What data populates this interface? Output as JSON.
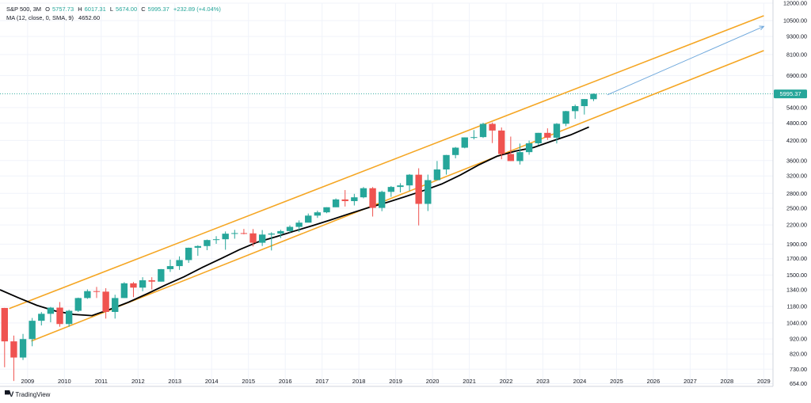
{
  "legend": {
    "symbol": "S&P 500, 3M",
    "open_label": "O",
    "open": "5757.73",
    "high_label": "H",
    "high": "6017.31",
    "low_label": "L",
    "low": "5674.00",
    "close_label": "C",
    "close": "5995.37",
    "change": "+232.89 (+4.04%)",
    "ma_label": "MA (12, close, 0, SMA, 9)",
    "ma_value": "4652.60"
  },
  "brand": {
    "icon": "tradingview-logo-icon",
    "name": "TradingView"
  },
  "price_badge": "5995.37",
  "colors": {
    "up": "#26a69a",
    "down": "#ef5350",
    "ma": "#000000",
    "channel": "#f5a623",
    "projection": "#6fa8dc",
    "grid": "#f0f3fa",
    "axis_text": "#131722"
  },
  "chart_data": {
    "type": "candlestick",
    "title": "",
    "xlabel": "",
    "ylabel": "",
    "y_scale": "log",
    "ylim": [
      640,
      12000
    ],
    "xlim": [
      2008.75,
      2029.75
    ],
    "grid": true,
    "y_ticks": [
      "654.00",
      "730.00",
      "820.00",
      "920.00",
      "1040.00",
      "1180.00",
      "1340.00",
      "1500.00",
      "1700.00",
      "1900.00",
      "2200.00",
      "2500.00",
      "2800.00",
      "3200.00",
      "3600.00",
      "4200.00",
      "4800.00",
      "5400.00",
      "6900.00",
      "8100.00",
      "9300.00",
      "10500.00",
      "12000.00"
    ],
    "x_ticks": [
      "2009",
      "2010",
      "2011",
      "2012",
      "2013",
      "2014",
      "2015",
      "2016",
      "2017",
      "2018",
      "2019",
      "2020",
      "2021",
      "2022",
      "2023",
      "2024",
      "2025",
      "2026",
      "2027",
      "2028",
      "2029"
    ],
    "series": [
      {
        "name": "S&P 500",
        "candles": [
          {
            "t": "2008-Q4",
            "o": 1166,
            "h": 1167,
            "l": 741,
            "c": 903
          },
          {
            "t": "2009-Q1",
            "o": 903,
            "h": 944,
            "l": 667,
            "c": 798
          },
          {
            "t": "2009-Q2",
            "o": 798,
            "h": 956,
            "l": 783,
            "c": 919
          },
          {
            "t": "2009-Q3",
            "o": 919,
            "h": 1080,
            "l": 870,
            "c": 1057
          },
          {
            "t": "2009-Q4",
            "o": 1057,
            "h": 1130,
            "l": 1020,
            "c": 1115
          },
          {
            "t": "2010-Q1",
            "o": 1115,
            "h": 1175,
            "l": 1045,
            "c": 1169
          },
          {
            "t": "2010-Q2",
            "o": 1169,
            "h": 1220,
            "l": 1010,
            "c": 1031
          },
          {
            "t": "2010-Q3",
            "o": 1031,
            "h": 1150,
            "l": 1010,
            "c": 1141
          },
          {
            "t": "2010-Q4",
            "o": 1141,
            "h": 1262,
            "l": 1131,
            "c": 1258
          },
          {
            "t": "2011-Q1",
            "o": 1258,
            "h": 1344,
            "l": 1250,
            "c": 1326
          },
          {
            "t": "2011-Q2",
            "o": 1326,
            "h": 1370,
            "l": 1258,
            "c": 1321
          },
          {
            "t": "2011-Q3",
            "o": 1321,
            "h": 1356,
            "l": 1075,
            "c": 1131
          },
          {
            "t": "2011-Q4",
            "o": 1131,
            "h": 1290,
            "l": 1075,
            "c": 1258
          },
          {
            "t": "2012-Q1",
            "o": 1258,
            "h": 1420,
            "l": 1258,
            "c": 1408
          },
          {
            "t": "2012-Q2",
            "o": 1408,
            "h": 1422,
            "l": 1267,
            "c": 1362
          },
          {
            "t": "2012-Q3",
            "o": 1362,
            "h": 1475,
            "l": 1325,
            "c": 1441
          },
          {
            "t": "2012-Q4",
            "o": 1441,
            "h": 1475,
            "l": 1343,
            "c": 1426
          },
          {
            "t": "2013-Q1",
            "o": 1426,
            "h": 1570,
            "l": 1426,
            "c": 1569
          },
          {
            "t": "2013-Q2",
            "o": 1569,
            "h": 1687,
            "l": 1536,
            "c": 1606
          },
          {
            "t": "2013-Q3",
            "o": 1606,
            "h": 1730,
            "l": 1560,
            "c": 1682
          },
          {
            "t": "2013-Q4",
            "o": 1682,
            "h": 1850,
            "l": 1646,
            "c": 1848
          },
          {
            "t": "2014-Q1",
            "o": 1848,
            "h": 1883,
            "l": 1737,
            "c": 1872
          },
          {
            "t": "2014-Q2",
            "o": 1872,
            "h": 1968,
            "l": 1814,
            "c": 1960
          },
          {
            "t": "2014-Q3",
            "o": 1960,
            "h": 2019,
            "l": 1904,
            "c": 1972
          },
          {
            "t": "2014-Q4",
            "o": 1972,
            "h": 2093,
            "l": 1820,
            "c": 2058
          },
          {
            "t": "2015-Q1",
            "o": 2058,
            "h": 2119,
            "l": 1980,
            "c": 2067
          },
          {
            "t": "2015-Q2",
            "o": 2067,
            "h": 2134,
            "l": 2048,
            "c": 2063
          },
          {
            "t": "2015-Q3",
            "o": 2063,
            "h": 2132,
            "l": 1867,
            "c": 1920
          },
          {
            "t": "2015-Q4",
            "o": 1920,
            "h": 2116,
            "l": 1872,
            "c": 2044
          },
          {
            "t": "2016-Q1",
            "o": 2044,
            "h": 2081,
            "l": 1810,
            "c": 2060
          },
          {
            "t": "2016-Q2",
            "o": 2060,
            "h": 2120,
            "l": 1991,
            "c": 2099
          },
          {
            "t": "2016-Q3",
            "o": 2099,
            "h": 2194,
            "l": 2074,
            "c": 2168
          },
          {
            "t": "2016-Q4",
            "o": 2168,
            "h": 2278,
            "l": 2084,
            "c": 2239
          },
          {
            "t": "2017-Q1",
            "o": 2239,
            "h": 2401,
            "l": 2245,
            "c": 2363
          },
          {
            "t": "2017-Q2",
            "o": 2363,
            "h": 2454,
            "l": 2322,
            "c": 2423
          },
          {
            "t": "2017-Q3",
            "o": 2423,
            "h": 2519,
            "l": 2407,
            "c": 2519
          },
          {
            "t": "2017-Q4",
            "o": 2519,
            "h": 2695,
            "l": 2521,
            "c": 2674
          },
          {
            "t": "2018-Q1",
            "o": 2674,
            "h": 2873,
            "l": 2533,
            "c": 2640
          },
          {
            "t": "2018-Q2",
            "o": 2640,
            "h": 2791,
            "l": 2553,
            "c": 2718
          },
          {
            "t": "2018-Q3",
            "o": 2718,
            "h": 2941,
            "l": 2698,
            "c": 2914
          },
          {
            "t": "2018-Q4",
            "o": 2914,
            "h": 2940,
            "l": 2346,
            "c": 2507
          },
          {
            "t": "2019-Q1",
            "o": 2507,
            "h": 2860,
            "l": 2444,
            "c": 2834
          },
          {
            "t": "2019-Q2",
            "o": 2834,
            "h": 2964,
            "l": 2728,
            "c": 2942
          },
          {
            "t": "2019-Q3",
            "o": 2942,
            "h": 3028,
            "l": 2822,
            "c": 2977
          },
          {
            "t": "2019-Q4",
            "o": 2977,
            "h": 3247,
            "l": 2855,
            "c": 3231
          },
          {
            "t": "2020-Q1",
            "o": 3231,
            "h": 3394,
            "l": 2192,
            "c": 2585
          },
          {
            "t": "2020-Q2",
            "o": 2585,
            "h": 3233,
            "l": 2447,
            "c": 3100
          },
          {
            "t": "2020-Q3",
            "o": 3100,
            "h": 3588,
            "l": 3110,
            "c": 3363
          },
          {
            "t": "2020-Q4",
            "o": 3363,
            "h": 3760,
            "l": 3233,
            "c": 3756
          },
          {
            "t": "2021-Q1",
            "o": 3756,
            "h": 3994,
            "l": 3662,
            "c": 3973
          },
          {
            "t": "2021-Q2",
            "o": 3973,
            "h": 4300,
            "l": 3954,
            "c": 4298
          },
          {
            "t": "2021-Q3",
            "o": 4298,
            "h": 4546,
            "l": 4233,
            "c": 4308
          },
          {
            "t": "2021-Q4",
            "o": 4308,
            "h": 4808,
            "l": 4278,
            "c": 4766
          },
          {
            "t": "2022-Q1",
            "o": 4766,
            "h": 4818,
            "l": 4115,
            "c": 4530
          },
          {
            "t": "2022-Q2",
            "o": 4530,
            "h": 4637,
            "l": 3637,
            "c": 3785
          },
          {
            "t": "2022-Q3",
            "o": 3785,
            "h": 4325,
            "l": 3584,
            "c": 3586
          },
          {
            "t": "2022-Q4",
            "o": 3586,
            "h": 4100,
            "l": 3492,
            "c": 3840
          },
          {
            "t": "2023-Q1",
            "o": 3840,
            "h": 4195,
            "l": 3764,
            "c": 4109
          },
          {
            "t": "2023-Q2",
            "o": 4109,
            "h": 4450,
            "l": 4048,
            "c": 4450
          },
          {
            "t": "2023-Q3",
            "o": 4450,
            "h": 4607,
            "l": 4216,
            "c": 4288
          },
          {
            "t": "2023-Q4",
            "o": 4288,
            "h": 4793,
            "l": 4104,
            "c": 4770
          },
          {
            "t": "2024-Q1",
            "o": 4770,
            "h": 5265,
            "l": 4682,
            "c": 5254
          },
          {
            "t": "2024-Q2",
            "o": 5254,
            "h": 5524,
            "l": 4953,
            "c": 5460
          },
          {
            "t": "2024-Q3",
            "o": 5460,
            "h": 5767,
            "l": 5119,
            "c": 5762
          },
          {
            "t": "2024-Q4",
            "o": 5757.73,
            "h": 6017.31,
            "l": 5674.0,
            "c": 5995.37
          }
        ]
      },
      {
        "name": "MA (12, close, 0, SMA, 9)",
        "points": [
          [
            2008.75,
            1340
          ],
          [
            2009.25,
            1260
          ],
          [
            2009.75,
            1190
          ],
          [
            2010.25,
            1140
          ],
          [
            2010.75,
            1110
          ],
          [
            2011.25,
            1100
          ],
          [
            2011.75,
            1155
          ],
          [
            2012.25,
            1220
          ],
          [
            2012.75,
            1300
          ],
          [
            2013.25,
            1390
          ],
          [
            2013.75,
            1480
          ],
          [
            2014.25,
            1590
          ],
          [
            2014.75,
            1700
          ],
          [
            2015.25,
            1820
          ],
          [
            2015.75,
            1930
          ],
          [
            2016.25,
            2010
          ],
          [
            2016.75,
            2100
          ],
          [
            2017.25,
            2190
          ],
          [
            2017.75,
            2290
          ],
          [
            2018.25,
            2400
          ],
          [
            2018.75,
            2510
          ],
          [
            2019.25,
            2610
          ],
          [
            2019.75,
            2730
          ],
          [
            2020.25,
            2860
          ],
          [
            2020.75,
            3010
          ],
          [
            2021.25,
            3220
          ],
          [
            2021.75,
            3480
          ],
          [
            2022.25,
            3720
          ],
          [
            2022.75,
            3870
          ],
          [
            2023.25,
            3980
          ],
          [
            2023.75,
            4180
          ],
          [
            2024.25,
            4380
          ],
          [
            2024.75,
            4652.6
          ]
        ]
      }
    ],
    "channel": {
      "upper": [
        [
          2009.0,
          1160
        ],
        [
          2029.5,
          10900
        ]
      ],
      "lower": [
        [
          2009.6,
          905
        ],
        [
          2029.5,
          8350
        ]
      ]
    },
    "projection": [
      [
        2025.25,
        5950
      ],
      [
        2029.5,
        10050
      ]
    ],
    "last_price": 5995.37
  }
}
